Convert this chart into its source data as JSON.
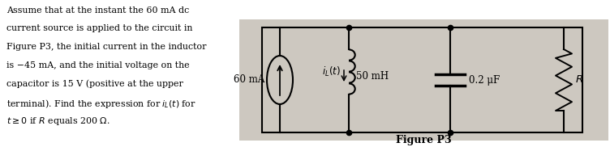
{
  "bg_color": "#ffffff",
  "circuit_bg": "#cdc8c0",
  "text_color": "#000000",
  "figure_label": "Figure P3",
  "label_60mA": "60 mA",
  "label_iL": "$i_L(t)$",
  "label_50mH": "50 mH",
  "label_cap": "0.2 μF",
  "label_R": "$R$",
  "text_lines": [
    "Assume that at the instant the 60 mA dc",
    "current source is applied to the circuit in",
    "Figure P3, the initial current in the inductor",
    "is −45 mA, and the initial voltage on the",
    "capacitor is 15 V (positive at the upper",
    "terminal). Find the expression for $i_L(t)$ for",
    "$t\\geq 0$ if $R$ equals 200 $\\Omega$."
  ]
}
